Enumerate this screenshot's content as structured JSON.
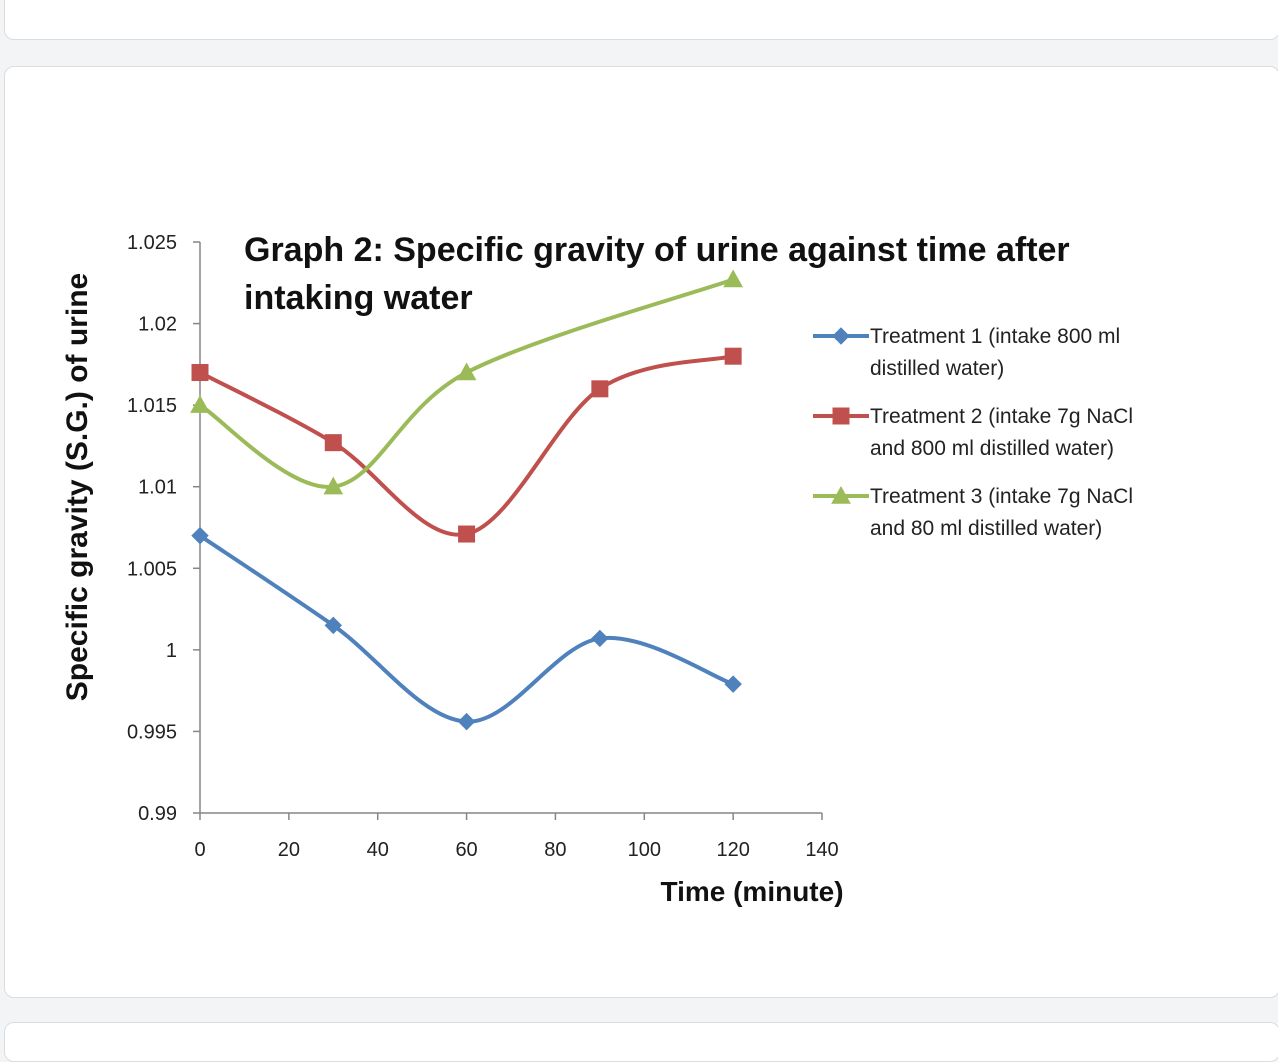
{
  "chart_data": {
    "type": "line",
    "title_line1": "Graph 2: Specific gravity of urine against time after",
    "title_line2": "intaking water",
    "xlabel": "Time (minute)",
    "ylabel": "Specific gravity (S.G.) of urine",
    "xlim": [
      0,
      140
    ],
    "ylim": [
      0.99,
      1.025
    ],
    "xticks": [
      "0",
      "20",
      "40",
      "60",
      "80",
      "100",
      "120",
      "140"
    ],
    "yticks": [
      "0.99",
      "0.995",
      "1",
      "1.005",
      "1.01",
      "1.015",
      "1.02",
      "1.025"
    ],
    "grid": false,
    "legend_position": "right",
    "smoothed": true,
    "series": [
      {
        "name": "Treatment 1 (intake 800 ml distilled water)",
        "legend_line1": "Treatment 1 (intake 800 ml",
        "legend_line2": "distilled water)",
        "color": "#4f81bd",
        "marker": "diamond",
        "x": [
          0,
          30,
          60,
          90,
          120
        ],
        "y": [
          1.007,
          1.0015,
          0.9956,
          1.0007,
          0.9979
        ]
      },
      {
        "name": "Treatment 2 (intake 7g NaCl and 800 ml distilled water)",
        "legend_line1": "Treatment 2 (intake 7g NaCl",
        "legend_line2": "and 800 ml distilled water)",
        "color": "#c0504d",
        "marker": "square",
        "x": [
          0,
          30,
          60,
          90,
          120
        ],
        "y": [
          1.017,
          1.0127,
          1.0071,
          1.016,
          1.018
        ]
      },
      {
        "name": "Treatment 3 (intake 7g NaCl and 80 ml distilled water)",
        "legend_line1": "Treatment 3 (intake 7g NaCl",
        "legend_line2": "and 80 ml distilled water)",
        "color": "#9bbb59",
        "marker": "triangle",
        "x": [
          0,
          30,
          60,
          120
        ],
        "y": [
          1.015,
          1.01,
          1.017,
          1.0227
        ]
      }
    ]
  }
}
